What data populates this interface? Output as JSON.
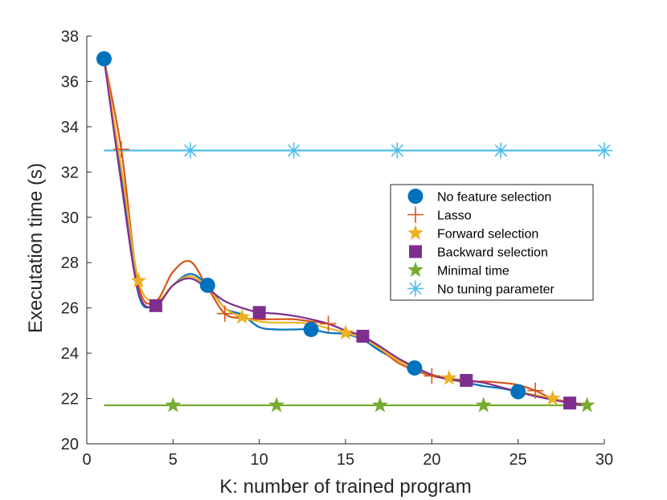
{
  "chart_data": {
    "type": "line",
    "title": "",
    "xlabel": "K: number of trained program",
    "ylabel": "Executation time (s)",
    "xlim": [
      0,
      30
    ],
    "ylim": [
      20,
      38
    ],
    "xticks": [
      0,
      5,
      10,
      15,
      20,
      25,
      30
    ],
    "yticks": [
      20,
      22,
      24,
      26,
      28,
      30,
      32,
      34,
      36,
      38
    ],
    "grid": false,
    "legend_position": "right",
    "series": [
      {
        "name": "No feature selection",
        "color": "#0072bd",
        "marker": "circle",
        "x": [
          1,
          2,
          3,
          4,
          5,
          6,
          7,
          8,
          9,
          10,
          11,
          12,
          13,
          14,
          15,
          16,
          17,
          18,
          19,
          20,
          21,
          22,
          23,
          24,
          25,
          26,
          27,
          28,
          29
        ],
        "y": [
          37.0,
          32.0,
          26.6,
          26.2,
          27.0,
          27.5,
          27.0,
          26.0,
          25.7,
          25.15,
          25.05,
          25.05,
          25.05,
          24.9,
          24.85,
          24.6,
          24.1,
          23.7,
          23.35,
          23.05,
          22.85,
          22.7,
          22.55,
          22.45,
          22.3,
          22.15,
          22.0,
          21.8,
          21.7
        ],
        "marker_x": [
          1,
          7,
          13,
          19,
          25
        ],
        "marker_y": [
          37.0,
          27.0,
          25.05,
          23.35,
          22.3
        ]
      },
      {
        "name": "Lasso",
        "color": "#d95319",
        "marker": "plus",
        "x": [
          1,
          2,
          3,
          4,
          5,
          6,
          7,
          8,
          9,
          10,
          11,
          12,
          13,
          14,
          15,
          16,
          17,
          18,
          19,
          20,
          21,
          22,
          23,
          24,
          25,
          26,
          27,
          28,
          29
        ],
        "y": [
          37.0,
          33.0,
          27.0,
          26.3,
          27.6,
          28.05,
          26.9,
          25.75,
          25.55,
          25.5,
          25.5,
          25.5,
          25.4,
          25.3,
          25.0,
          24.75,
          24.2,
          23.6,
          23.25,
          23.0,
          22.85,
          22.75,
          22.75,
          22.7,
          22.6,
          22.35,
          22.0,
          21.85,
          21.7
        ],
        "marker_x": [
          2,
          8,
          14,
          20,
          26
        ],
        "marker_y": [
          33.0,
          25.75,
          25.3,
          23.0,
          22.35
        ]
      },
      {
        "name": "Forward selection",
        "color": "#edb120",
        "marker": "star",
        "x": [
          1,
          2,
          3,
          4,
          5,
          6,
          7,
          8,
          9,
          10,
          11,
          12,
          13,
          14,
          15,
          16,
          17,
          18,
          19,
          20,
          21,
          22,
          23,
          24,
          25,
          26,
          27,
          28,
          29
        ],
        "y": [
          37.0,
          32.2,
          27.2,
          26.3,
          27.0,
          27.4,
          26.9,
          26.0,
          25.6,
          25.4,
          25.35,
          25.35,
          25.3,
          25.1,
          24.9,
          24.65,
          24.2,
          23.7,
          23.35,
          23.05,
          22.9,
          22.8,
          22.7,
          22.5,
          22.3,
          22.15,
          22.0,
          21.8,
          21.7
        ],
        "marker_x": [
          3,
          9,
          15,
          21,
          27
        ],
        "marker_y": [
          27.2,
          25.6,
          24.9,
          22.9,
          22.0
        ]
      },
      {
        "name": "Backward selection",
        "color": "#7e2f8e",
        "marker": "square",
        "x": [
          1,
          2,
          3,
          4,
          5,
          6,
          7,
          8,
          9,
          10,
          11,
          12,
          13,
          14,
          15,
          16,
          17,
          18,
          19,
          20,
          21,
          22,
          23,
          24,
          25,
          26,
          27,
          28,
          29
        ],
        "y": [
          37.0,
          31.5,
          26.7,
          26.1,
          27.0,
          27.3,
          26.85,
          26.3,
          26.0,
          25.8,
          25.75,
          25.65,
          25.5,
          25.3,
          25.0,
          24.75,
          24.3,
          23.8,
          23.4,
          23.05,
          22.85,
          22.8,
          22.7,
          22.5,
          22.3,
          22.1,
          21.95,
          21.8,
          21.7
        ],
        "marker_x": [
          4,
          10,
          16,
          22,
          28
        ],
        "marker_y": [
          26.1,
          25.8,
          24.75,
          22.8,
          21.8
        ]
      },
      {
        "name": "Minimal time",
        "color": "#77ac30",
        "marker": "star",
        "x": [
          1,
          29
        ],
        "y": [
          21.7,
          21.7
        ],
        "marker_x": [
          5,
          11,
          17,
          23,
          29
        ],
        "marker_y": [
          21.7,
          21.7,
          21.7,
          21.7,
          21.7
        ]
      },
      {
        "name": "No tuning parameter",
        "color": "#4dbeee",
        "marker": "asterisk",
        "x": [
          1,
          30
        ],
        "y": [
          32.95,
          32.95
        ],
        "marker_x": [
          6,
          12,
          18,
          24,
          30
        ],
        "marker_y": [
          32.95,
          32.95,
          32.95,
          32.95,
          32.95
        ]
      }
    ]
  }
}
